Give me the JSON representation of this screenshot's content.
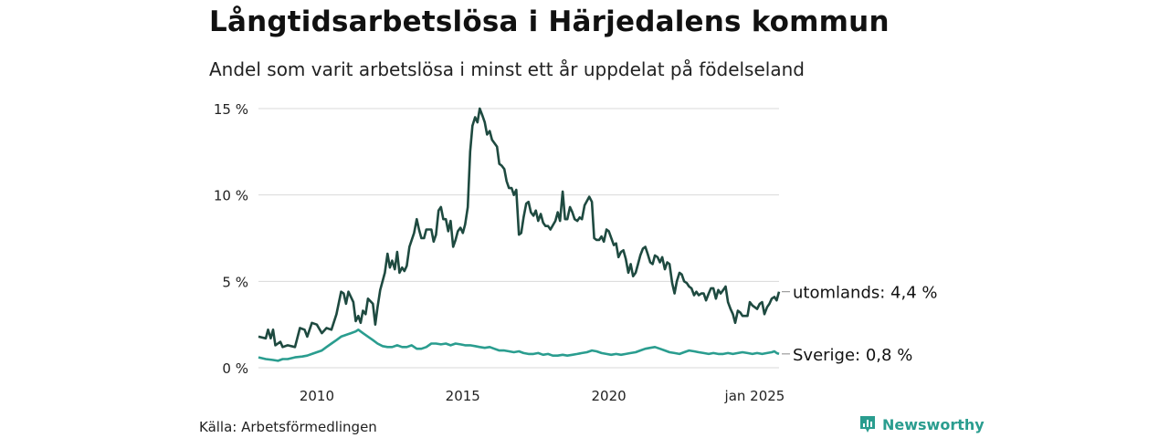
{
  "title": "Långtidsarbetslösa i Härjedalens kommun",
  "subtitle": "Andel som varit arbetslösa i minst ett år uppdelat på födelseland",
  "source": "Källa: Arbetsförmedlingen",
  "brand": {
    "name": "Newsworthy",
    "icon": "bar-chart-icon"
  },
  "chart_data": {
    "type": "line",
    "ylim": [
      0,
      15
    ],
    "y_ticks": [
      {
        "value": 0,
        "label": "0 %"
      },
      {
        "value": 5,
        "label": "5 %"
      },
      {
        "value": 10,
        "label": "10 %"
      },
      {
        "value": 15,
        "label": "15 %"
      }
    ],
    "x_ticks": [
      {
        "value": 2010,
        "label": "2010"
      },
      {
        "value": 2015,
        "label": "2015"
      },
      {
        "value": 2020,
        "label": "2020"
      },
      {
        "value": 2025,
        "label": "jan 2025"
      }
    ],
    "grid": "horizontal",
    "series": [
      {
        "name": "utomlands",
        "color": "#1e4a40",
        "end_label": "utomlands: 4,4 %",
        "points": [
          [
            2008.0,
            1.8
          ],
          [
            2008.25,
            1.7
          ],
          [
            2008.33,
            2.2
          ],
          [
            2008.42,
            1.7
          ],
          [
            2008.5,
            2.2
          ],
          [
            2008.58,
            1.3
          ],
          [
            2008.75,
            1.5
          ],
          [
            2008.83,
            1.2
          ],
          [
            2009.0,
            1.3
          ],
          [
            2009.25,
            1.2
          ],
          [
            2009.42,
            2.3
          ],
          [
            2009.58,
            2.2
          ],
          [
            2009.67,
            1.8
          ],
          [
            2009.83,
            2.6
          ],
          [
            2010.0,
            2.5
          ],
          [
            2010.17,
            2.0
          ],
          [
            2010.33,
            2.3
          ],
          [
            2010.5,
            2.2
          ],
          [
            2010.67,
            3.1
          ],
          [
            2010.83,
            4.4
          ],
          [
            2010.92,
            4.3
          ],
          [
            2011.0,
            3.7
          ],
          [
            2011.08,
            4.4
          ],
          [
            2011.25,
            3.8
          ],
          [
            2011.33,
            2.7
          ],
          [
            2011.42,
            3.0
          ],
          [
            2011.5,
            2.6
          ],
          [
            2011.58,
            3.3
          ],
          [
            2011.67,
            3.1
          ],
          [
            2011.75,
            4.0
          ],
          [
            2011.92,
            3.7
          ],
          [
            2012.0,
            2.5
          ],
          [
            2012.08,
            3.5
          ],
          [
            2012.17,
            4.5
          ],
          [
            2012.33,
            5.5
          ],
          [
            2012.42,
            6.6
          ],
          [
            2012.5,
            5.8
          ],
          [
            2012.58,
            6.2
          ],
          [
            2012.67,
            5.7
          ],
          [
            2012.75,
            6.7
          ],
          [
            2012.83,
            5.5
          ],
          [
            2012.92,
            5.8
          ],
          [
            2013.0,
            5.6
          ],
          [
            2013.08,
            5.9
          ],
          [
            2013.17,
            7.0
          ],
          [
            2013.33,
            7.8
          ],
          [
            2013.42,
            8.6
          ],
          [
            2013.5,
            8.0
          ],
          [
            2013.58,
            7.5
          ],
          [
            2013.67,
            7.5
          ],
          [
            2013.75,
            8.0
          ],
          [
            2013.92,
            8.0
          ],
          [
            2014.0,
            7.3
          ],
          [
            2014.08,
            7.7
          ],
          [
            2014.17,
            9.1
          ],
          [
            2014.25,
            9.3
          ],
          [
            2014.33,
            8.6
          ],
          [
            2014.42,
            8.6
          ],
          [
            2014.5,
            7.9
          ],
          [
            2014.58,
            8.5
          ],
          [
            2014.67,
            7.0
          ],
          [
            2014.75,
            7.4
          ],
          [
            2014.83,
            7.9
          ],
          [
            2014.92,
            8.1
          ],
          [
            2015.0,
            7.8
          ],
          [
            2015.08,
            8.3
          ],
          [
            2015.17,
            9.3
          ],
          [
            2015.25,
            12.5
          ],
          [
            2015.33,
            14.0
          ],
          [
            2015.42,
            14.5
          ],
          [
            2015.5,
            14.2
          ],
          [
            2015.58,
            15.0
          ],
          [
            2015.67,
            14.6
          ],
          [
            2015.75,
            14.2
          ],
          [
            2015.83,
            13.5
          ],
          [
            2015.92,
            13.7
          ],
          [
            2016.0,
            13.2
          ],
          [
            2016.17,
            12.8
          ],
          [
            2016.25,
            11.8
          ],
          [
            2016.33,
            11.7
          ],
          [
            2016.42,
            11.5
          ],
          [
            2016.5,
            10.8
          ],
          [
            2016.58,
            10.4
          ],
          [
            2016.67,
            10.4
          ],
          [
            2016.75,
            10.0
          ],
          [
            2016.83,
            10.3
          ],
          [
            2016.92,
            7.7
          ],
          [
            2017.0,
            7.8
          ],
          [
            2017.08,
            8.7
          ],
          [
            2017.17,
            9.5
          ],
          [
            2017.25,
            9.6
          ],
          [
            2017.33,
            9.0
          ],
          [
            2017.42,
            8.8
          ],
          [
            2017.5,
            9.1
          ],
          [
            2017.58,
            8.5
          ],
          [
            2017.67,
            8.9
          ],
          [
            2017.75,
            8.4
          ],
          [
            2017.83,
            8.2
          ],
          [
            2017.92,
            8.2
          ],
          [
            2018.0,
            8.0
          ],
          [
            2018.17,
            8.5
          ],
          [
            2018.25,
            9.0
          ],
          [
            2018.33,
            8.5
          ],
          [
            2018.42,
            10.2
          ],
          [
            2018.5,
            8.6
          ],
          [
            2018.58,
            8.6
          ],
          [
            2018.67,
            9.3
          ],
          [
            2018.75,
            9.0
          ],
          [
            2018.83,
            8.6
          ],
          [
            2018.92,
            8.5
          ],
          [
            2019.0,
            8.7
          ],
          [
            2019.08,
            8.6
          ],
          [
            2019.17,
            9.4
          ],
          [
            2019.33,
            9.9
          ],
          [
            2019.42,
            9.6
          ],
          [
            2019.5,
            7.5
          ],
          [
            2019.58,
            7.4
          ],
          [
            2019.67,
            7.4
          ],
          [
            2019.75,
            7.6
          ],
          [
            2019.83,
            7.3
          ],
          [
            2019.92,
            8.0
          ],
          [
            2020.0,
            7.9
          ],
          [
            2020.17,
            7.1
          ],
          [
            2020.25,
            7.2
          ],
          [
            2020.33,
            6.4
          ],
          [
            2020.42,
            6.7
          ],
          [
            2020.5,
            6.8
          ],
          [
            2020.58,
            6.3
          ],
          [
            2020.67,
            5.5
          ],
          [
            2020.75,
            6.0
          ],
          [
            2020.83,
            5.3
          ],
          [
            2020.92,
            5.5
          ],
          [
            2021.0,
            6.0
          ],
          [
            2021.08,
            6.5
          ],
          [
            2021.17,
            6.9
          ],
          [
            2021.25,
            7.0
          ],
          [
            2021.33,
            6.6
          ],
          [
            2021.42,
            6.1
          ],
          [
            2021.5,
            6.0
          ],
          [
            2021.58,
            6.5
          ],
          [
            2021.67,
            6.4
          ],
          [
            2021.75,
            6.1
          ],
          [
            2021.83,
            6.4
          ],
          [
            2021.92,
            5.7
          ],
          [
            2022.0,
            6.1
          ],
          [
            2022.08,
            6.0
          ],
          [
            2022.17,
            4.9
          ],
          [
            2022.25,
            4.3
          ],
          [
            2022.33,
            5.0
          ],
          [
            2022.42,
            5.5
          ],
          [
            2022.5,
            5.4
          ],
          [
            2022.58,
            5.0
          ],
          [
            2022.67,
            4.9
          ],
          [
            2022.75,
            4.7
          ],
          [
            2022.83,
            4.6
          ],
          [
            2022.92,
            4.2
          ],
          [
            2023.0,
            4.4
          ],
          [
            2023.08,
            4.2
          ],
          [
            2023.17,
            4.3
          ],
          [
            2023.25,
            4.3
          ],
          [
            2023.33,
            3.9
          ],
          [
            2023.42,
            4.3
          ],
          [
            2023.5,
            4.6
          ],
          [
            2023.58,
            4.6
          ],
          [
            2023.67,
            4.0
          ],
          [
            2023.75,
            4.5
          ],
          [
            2023.83,
            4.3
          ],
          [
            2023.92,
            4.5
          ],
          [
            2024.0,
            4.7
          ],
          [
            2024.08,
            3.8
          ],
          [
            2024.17,
            3.4
          ],
          [
            2024.25,
            3.1
          ],
          [
            2024.33,
            2.6
          ],
          [
            2024.42,
            3.3
          ],
          [
            2024.5,
            3.2
          ],
          [
            2024.58,
            3.0
          ],
          [
            2024.67,
            3.0
          ],
          [
            2024.75,
            3.0
          ],
          [
            2024.83,
            3.8
          ],
          [
            2024.92,
            3.6
          ],
          [
            2025.0,
            3.5
          ],
          [
            2025.08,
            3.4
          ],
          [
            2025.17,
            3.7
          ],
          [
            2025.25,
            3.8
          ],
          [
            2025.33,
            3.1
          ],
          [
            2025.42,
            3.5
          ],
          [
            2025.5,
            3.7
          ],
          [
            2025.58,
            4.0
          ],
          [
            2025.67,
            4.1
          ],
          [
            2025.75,
            3.9
          ],
          [
            2025.83,
            4.4
          ]
        ]
      },
      {
        "name": "Sverige",
        "color": "#2a9d8f",
        "end_label": "Sverige: 0,8 %",
        "points": [
          [
            2008.0,
            0.6
          ],
          [
            2008.25,
            0.5
          ],
          [
            2008.5,
            0.45
          ],
          [
            2008.67,
            0.4
          ],
          [
            2008.83,
            0.5
          ],
          [
            2009.0,
            0.5
          ],
          [
            2009.25,
            0.6
          ],
          [
            2009.5,
            0.65
          ],
          [
            2009.67,
            0.7
          ],
          [
            2009.83,
            0.8
          ],
          [
            2010.0,
            0.9
          ],
          [
            2010.17,
            1.0
          ],
          [
            2010.33,
            1.2
          ],
          [
            2010.5,
            1.4
          ],
          [
            2010.67,
            1.6
          ],
          [
            2010.83,
            1.8
          ],
          [
            2011.0,
            1.9
          ],
          [
            2011.17,
            2.0
          ],
          [
            2011.33,
            2.1
          ],
          [
            2011.42,
            2.2
          ],
          [
            2011.58,
            2.0
          ],
          [
            2011.75,
            1.8
          ],
          [
            2011.92,
            1.6
          ],
          [
            2012.08,
            1.4
          ],
          [
            2012.25,
            1.25
          ],
          [
            2012.42,
            1.2
          ],
          [
            2012.58,
            1.2
          ],
          [
            2012.75,
            1.3
          ],
          [
            2012.92,
            1.2
          ],
          [
            2013.08,
            1.2
          ],
          [
            2013.25,
            1.3
          ],
          [
            2013.42,
            1.1
          ],
          [
            2013.58,
            1.1
          ],
          [
            2013.75,
            1.2
          ],
          [
            2013.92,
            1.4
          ],
          [
            2014.08,
            1.4
          ],
          [
            2014.25,
            1.35
          ],
          [
            2014.42,
            1.4
          ],
          [
            2014.58,
            1.3
          ],
          [
            2014.75,
            1.4
          ],
          [
            2014.92,
            1.35
          ],
          [
            2015.08,
            1.3
          ],
          [
            2015.25,
            1.3
          ],
          [
            2015.42,
            1.25
          ],
          [
            2015.58,
            1.2
          ],
          [
            2015.75,
            1.15
          ],
          [
            2015.92,
            1.2
          ],
          [
            2016.08,
            1.1
          ],
          [
            2016.25,
            1.0
          ],
          [
            2016.42,
            1.0
          ],
          [
            2016.58,
            0.95
          ],
          [
            2016.75,
            0.9
          ],
          [
            2016.92,
            0.95
          ],
          [
            2017.08,
            0.85
          ],
          [
            2017.25,
            0.8
          ],
          [
            2017.42,
            0.8
          ],
          [
            2017.58,
            0.85
          ],
          [
            2017.75,
            0.75
          ],
          [
            2017.92,
            0.8
          ],
          [
            2018.08,
            0.7
          ],
          [
            2018.25,
            0.7
          ],
          [
            2018.42,
            0.75
          ],
          [
            2018.58,
            0.7
          ],
          [
            2018.75,
            0.75
          ],
          [
            2018.92,
            0.8
          ],
          [
            2019.08,
            0.85
          ],
          [
            2019.25,
            0.9
          ],
          [
            2019.42,
            1.0
          ],
          [
            2019.58,
            0.95
          ],
          [
            2019.75,
            0.85
          ],
          [
            2019.92,
            0.8
          ],
          [
            2020.08,
            0.75
          ],
          [
            2020.25,
            0.8
          ],
          [
            2020.42,
            0.75
          ],
          [
            2020.58,
            0.8
          ],
          [
            2020.75,
            0.85
          ],
          [
            2020.92,
            0.9
          ],
          [
            2021.08,
            1.0
          ],
          [
            2021.25,
            1.1
          ],
          [
            2021.42,
            1.15
          ],
          [
            2021.58,
            1.2
          ],
          [
            2021.75,
            1.1
          ],
          [
            2021.92,
            1.0
          ],
          [
            2022.08,
            0.9
          ],
          [
            2022.25,
            0.85
          ],
          [
            2022.42,
            0.8
          ],
          [
            2022.58,
            0.9
          ],
          [
            2022.75,
            1.0
          ],
          [
            2022.92,
            0.95
          ],
          [
            2023.08,
            0.9
          ],
          [
            2023.25,
            0.85
          ],
          [
            2023.42,
            0.8
          ],
          [
            2023.58,
            0.85
          ],
          [
            2023.75,
            0.8
          ],
          [
            2023.92,
            0.8
          ],
          [
            2024.08,
            0.85
          ],
          [
            2024.25,
            0.8
          ],
          [
            2024.42,
            0.85
          ],
          [
            2024.58,
            0.9
          ],
          [
            2024.75,
            0.85
          ],
          [
            2024.92,
            0.8
          ],
          [
            2025.08,
            0.85
          ],
          [
            2025.25,
            0.8
          ],
          [
            2025.42,
            0.85
          ],
          [
            2025.58,
            0.9
          ],
          [
            2025.67,
            0.95
          ],
          [
            2025.75,
            0.85
          ],
          [
            2025.83,
            0.8
          ]
        ]
      }
    ]
  }
}
